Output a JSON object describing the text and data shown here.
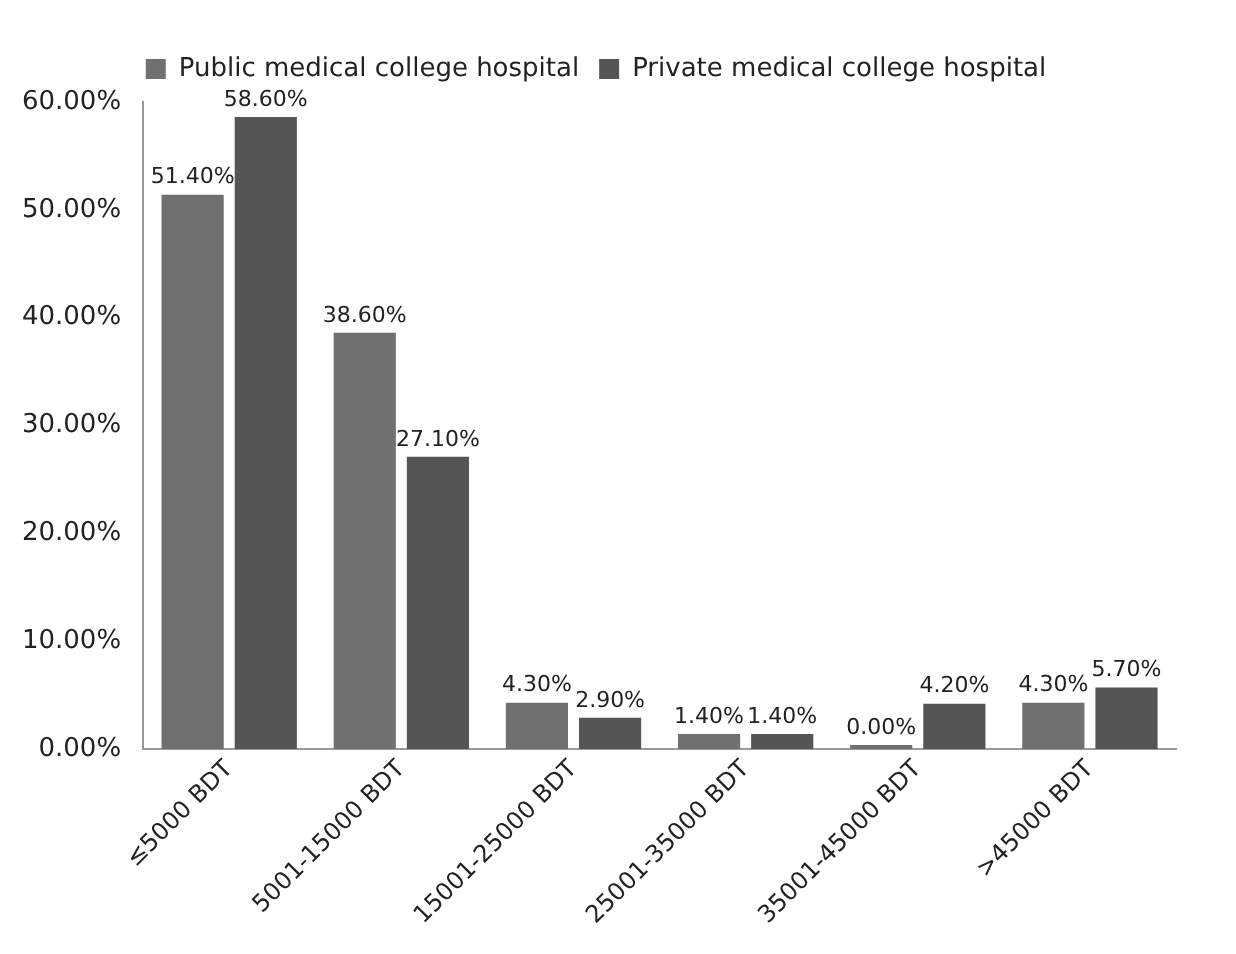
{
  "chart_data": {
    "type": "bar",
    "categories": [
      "≤5000 BDT",
      "5001-15000 BDT",
      "15001-25000 BDT",
      "25001-35000 BDT",
      "35001-45000 BDT",
      ">45000 BDT"
    ],
    "series": [
      {
        "name": "Public medical college hospital",
        "color": "#707070",
        "values": [
          51.4,
          38.6,
          4.3,
          1.4,
          0,
          4.3
        ],
        "value_labels": [
          "51.40%",
          "38.60%",
          "4.30%",
          "1.40%",
          "0.00%",
          "4.30%"
        ]
      },
      {
        "name": "Private medical college hospital",
        "color": "#555555",
        "values": [
          58.6,
          27.1,
          2.9,
          1.4,
          4.2,
          5.7
        ],
        "value_labels": [
          "58.60%",
          "27.10%",
          "2.90%",
          "1.40%",
          "4.20%",
          "5.70%"
        ]
      }
    ],
    "ylim": [
      0,
      60
    ],
    "yticks": [
      {
        "value": 0,
        "label": "0.00%"
      },
      {
        "value": 10,
        "label": "10.00%"
      },
      {
        "value": 20,
        "label": "20.00%"
      },
      {
        "value": 30,
        "label": "30.00%"
      },
      {
        "value": 40,
        "label": "40.00%"
      },
      {
        "value": 50,
        "label": "50.00%"
      },
      {
        "value": 60,
        "label": "60.00%"
      }
    ],
    "legend": "top",
    "grid": false
  }
}
